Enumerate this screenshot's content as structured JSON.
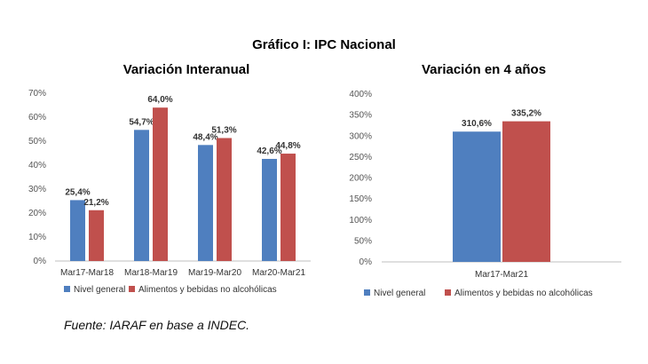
{
  "title": "Gráfico I: IPC Nacional",
  "source": "Fuente: IARAF en base a INDEC.",
  "colors": {
    "nivel": "#4f7fbf",
    "alimentos": "#c0504d"
  },
  "chart_data": [
    {
      "type": "bar",
      "title": "Variación Interanual",
      "categories": [
        "Mar17-Mar18",
        "Mar18-Mar19",
        "Mar19-Mar20",
        "Mar20-Mar21"
      ],
      "series": [
        {
          "name": "Nivel general",
          "values": [
            25.4,
            54.7,
            48.4,
            42.6
          ],
          "labels": [
            "25,4%",
            "54,7%",
            "48,4%",
            "42,6%"
          ]
        },
        {
          "name": "Alimentos y bebidas no alcohólicas",
          "values": [
            21.2,
            64.0,
            51.3,
            44.8
          ],
          "labels": [
            "21,2%",
            "64,0%",
            "51,3%",
            "44,8%"
          ]
        }
      ],
      "ylim": [
        0,
        70
      ],
      "yticks": [
        0,
        10,
        20,
        30,
        40,
        50,
        60,
        70
      ],
      "ytick_labels": [
        "0%",
        "10%",
        "20%",
        "30%",
        "40%",
        "50%",
        "60%",
        "70%"
      ],
      "legend": "bottom"
    },
    {
      "type": "bar",
      "title": "Variación en 4 años",
      "categories": [
        "Mar17-Mar21"
      ],
      "series": [
        {
          "name": "Nivel general",
          "values": [
            310.6
          ],
          "labels": [
            "310,6%"
          ]
        },
        {
          "name": "Alimentos y bebidas no alcohólicas",
          "values": [
            335.2
          ],
          "labels": [
            "335,2%"
          ]
        }
      ],
      "ylim": [
        0,
        400
      ],
      "yticks": [
        0,
        50,
        100,
        150,
        200,
        250,
        300,
        350,
        400
      ],
      "ytick_labels": [
        "0%",
        "50%",
        "100%",
        "150%",
        "200%",
        "250%",
        "300%",
        "350%",
        "400%"
      ],
      "legend": "bottom"
    }
  ]
}
